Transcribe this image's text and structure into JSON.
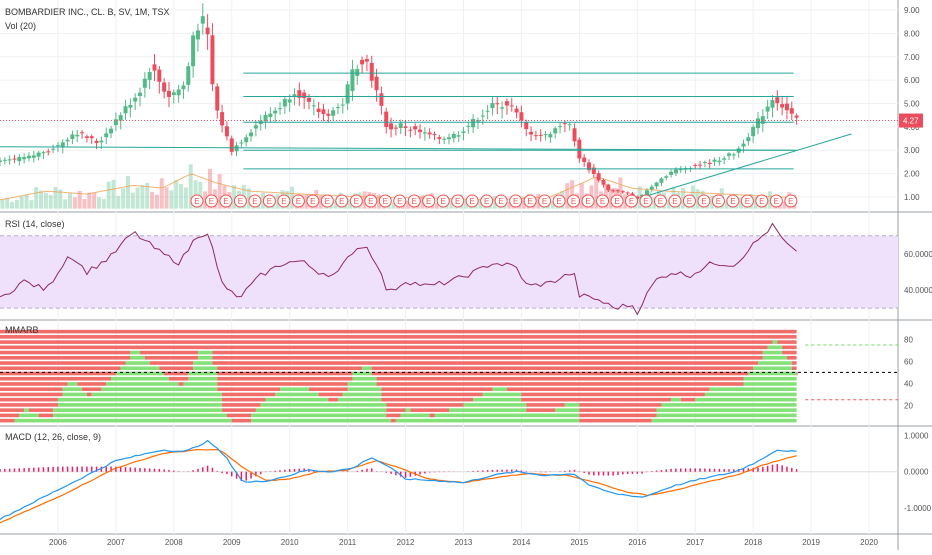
{
  "header": {
    "symbol_line": "BOMBARDIER INC., CL. B, SV, 1M, TSX",
    "volume_label": "Vol (20)"
  },
  "colors": {
    "up": "#53b987",
    "down": "#eb4d5c",
    "trendline": "#26a69a",
    "rsi_line": "#8e2a5f",
    "rsi_band": "#efe0fb",
    "macd_line": "#2196f3",
    "signal_line": "#ff6d00",
    "hist": "#e91e63",
    "mmar_green": "#6fdc5f",
    "mmar_red": "#ef5350",
    "price_tag": "#eb4d5c",
    "earnings": "#ef5350"
  },
  "price_tag": "4.27",
  "earnings_marker": "E",
  "chart_data": [
    {
      "pane": "price",
      "type": "candlestick",
      "title": "BOMBARDIER INC., CL. B, SV, 1M, TSX",
      "x_ticks": [
        "2006",
        "2007",
        "2008",
        "2009",
        "2010",
        "2011",
        "2012",
        "2013",
        "2014",
        "2015",
        "2016",
        "2017",
        "2018",
        "2019",
        "2020"
      ],
      "y_ticks": [
        "9.00",
        "8.00",
        "7.00",
        "6.00",
        "5.00",
        "4.00",
        "3.00",
        "2.00",
        "1.00"
      ],
      "ylim": [
        0.4,
        9.3
      ],
      "last_price": 4.27,
      "close_anchors": [
        [
          2005.0,
          2.5
        ],
        [
          2005.5,
          2.7
        ],
        [
          2006.0,
          3.2
        ],
        [
          2006.3,
          3.8
        ],
        [
          2006.7,
          3.3
        ],
        [
          2007.0,
          4.3
        ],
        [
          2007.4,
          5.5
        ],
        [
          2007.6,
          6.6
        ],
        [
          2007.9,
          5.3
        ],
        [
          2008.2,
          5.8
        ],
        [
          2008.35,
          8.2
        ],
        [
          2008.55,
          8.6
        ],
        [
          2008.7,
          5.0
        ],
        [
          2008.85,
          4.0
        ],
        [
          2009.0,
          3.0
        ],
        [
          2009.2,
          3.5
        ],
        [
          2009.5,
          4.3
        ],
        [
          2009.8,
          4.8
        ],
        [
          2010.1,
          5.6
        ],
        [
          2010.3,
          5.0
        ],
        [
          2010.6,
          4.5
        ],
        [
          2010.9,
          4.9
        ],
        [
          2011.1,
          6.5
        ],
        [
          2011.3,
          7.0
        ],
        [
          2011.5,
          5.5
        ],
        [
          2011.7,
          3.8
        ],
        [
          2011.9,
          4.1
        ],
        [
          2012.2,
          3.8
        ],
        [
          2012.6,
          3.5
        ],
        [
          2012.9,
          3.7
        ],
        [
          2013.2,
          4.3
        ],
        [
          2013.5,
          4.9
        ],
        [
          2013.8,
          5.0
        ],
        [
          2014.1,
          3.8
        ],
        [
          2014.4,
          3.6
        ],
        [
          2014.8,
          4.3
        ],
        [
          2015.0,
          2.7
        ],
        [
          2015.2,
          2.1
        ],
        [
          2015.5,
          1.3
        ],
        [
          2015.8,
          1.2
        ],
        [
          2016.0,
          0.9
        ],
        [
          2016.3,
          1.6
        ],
        [
          2016.6,
          2.1
        ],
        [
          2016.9,
          2.3
        ],
        [
          2017.3,
          2.5
        ],
        [
          2017.7,
          2.9
        ],
        [
          2017.9,
          3.6
        ],
        [
          2018.1,
          4.3
        ],
        [
          2018.35,
          5.3
        ],
        [
          2018.5,
          4.9
        ],
        [
          2018.75,
          4.27
        ]
      ],
      "volume_anchors": [
        [
          2005.0,
          0.15
        ],
        [
          2005.8,
          0.3
        ],
        [
          2006.5,
          0.25
        ],
        [
          2007.3,
          0.4
        ],
        [
          2007.8,
          0.35
        ],
        [
          2008.3,
          0.6
        ],
        [
          2008.7,
          0.45
        ],
        [
          2009.3,
          0.3
        ],
        [
          2010.2,
          0.25
        ],
        [
          2011.3,
          0.2
        ],
        [
          2012.5,
          0.18
        ],
        [
          2013.5,
          0.15
        ],
        [
          2014.5,
          0.2
        ],
        [
          2015.3,
          0.55
        ],
        [
          2015.9,
          0.35
        ],
        [
          2016.5,
          0.3
        ],
        [
          2017.5,
          0.25
        ],
        [
          2018.5,
          0.2
        ]
      ],
      "horizontal_lines": [
        6.3,
        5.3,
        4.2,
        3.0,
        2.2
      ],
      "support_line": [
        3.15,
        3.0
      ],
      "trend_line": [
        [
          2016.1,
          1.0
        ],
        [
          2019.7,
          3.7
        ]
      ],
      "earnings_start": 2008.4,
      "earnings_end": 2018.75,
      "earnings_step": 0.25
    },
    {
      "pane": "rsi",
      "type": "line",
      "title": "RSI (14, close)",
      "y_ticks": [
        "60.0000",
        "40.0000"
      ],
      "ylim": [
        24,
        82
      ],
      "band": [
        30,
        70
      ],
      "anchors": [
        [
          2005.0,
          35
        ],
        [
          2005.4,
          45
        ],
        [
          2005.8,
          40
        ],
        [
          2006.2,
          60
        ],
        [
          2006.5,
          50
        ],
        [
          2006.9,
          58
        ],
        [
          2007.3,
          72
        ],
        [
          2007.8,
          60
        ],
        [
          2008.1,
          55
        ],
        [
          2008.4,
          70
        ],
        [
          2008.6,
          72
        ],
        [
          2008.8,
          45
        ],
        [
          2009.1,
          35
        ],
        [
          2009.5,
          48
        ],
        [
          2009.9,
          55
        ],
        [
          2010.2,
          56
        ],
        [
          2010.5,
          50
        ],
        [
          2010.8,
          48
        ],
        [
          2011.1,
          62
        ],
        [
          2011.3,
          65
        ],
        [
          2011.5,
          55
        ],
        [
          2011.7,
          38
        ],
        [
          2012.0,
          45
        ],
        [
          2012.4,
          42
        ],
        [
          2012.8,
          45
        ],
        [
          2013.2,
          50
        ],
        [
          2013.5,
          55
        ],
        [
          2013.9,
          53
        ],
        [
          2014.1,
          42
        ],
        [
          2014.5,
          44
        ],
        [
          2014.9,
          50
        ],
        [
          2015.0,
          37
        ],
        [
          2015.3,
          35
        ],
        [
          2015.6,
          30
        ],
        [
          2015.9,
          32
        ],
        [
          2016.0,
          28
        ],
        [
          2016.3,
          45
        ],
        [
          2016.6,
          50
        ],
        [
          2016.9,
          48
        ],
        [
          2017.3,
          55
        ],
        [
          2017.7,
          54
        ],
        [
          2017.9,
          62
        ],
        [
          2018.1,
          68
        ],
        [
          2018.35,
          76
        ],
        [
          2018.5,
          68
        ],
        [
          2018.75,
          60
        ]
      ]
    },
    {
      "pane": "mmar",
      "type": "ribbon",
      "title": "MMARB",
      "y_ticks": [
        "80",
        "60",
        "40",
        "20"
      ],
      "ylim": [
        2,
        96
      ],
      "guides": [
        75,
        50,
        25
      ],
      "ribbon_count": 18,
      "ribbon_extent": [
        2005.0,
        2018.75
      ]
    },
    {
      "pane": "macd",
      "type": "line",
      "title": "MACD (12, 26, close, 9)",
      "y_ticks": [
        "1.0000",
        "0.0000",
        "-1.0000"
      ],
      "ylim": [
        -1.6,
        1.2
      ],
      "macd_anchors": [
        [
          2005.0,
          -1.3
        ],
        [
          2006.0,
          -0.5
        ],
        [
          2007.0,
          0.3
        ],
        [
          2007.8,
          0.6
        ],
        [
          2008.2,
          0.55
        ],
        [
          2008.6,
          0.85
        ],
        [
          2008.9,
          0.4
        ],
        [
          2009.2,
          -0.3
        ],
        [
          2009.6,
          -0.25
        ],
        [
          2010.0,
          -0.1
        ],
        [
          2010.3,
          0.05
        ],
        [
          2010.7,
          0.0
        ],
        [
          2011.1,
          0.1
        ],
        [
          2011.4,
          0.4
        ],
        [
          2011.7,
          0.15
        ],
        [
          2012.0,
          -0.2
        ],
        [
          2012.6,
          -0.25
        ],
        [
          2013.0,
          -0.3
        ],
        [
          2013.5,
          -0.1
        ],
        [
          2013.9,
          0.0
        ],
        [
          2014.4,
          -0.1
        ],
        [
          2014.9,
          -0.05
        ],
        [
          2015.2,
          -0.4
        ],
        [
          2015.6,
          -0.6
        ],
        [
          2016.1,
          -0.7
        ],
        [
          2016.6,
          -0.4
        ],
        [
          2017.1,
          -0.2
        ],
        [
          2017.7,
          0.0
        ],
        [
          2018.1,
          0.3
        ],
        [
          2018.4,
          0.6
        ],
        [
          2018.75,
          0.55
        ]
      ],
      "signal_anchors": [
        [
          2005.0,
          -1.4
        ],
        [
          2006.0,
          -0.7
        ],
        [
          2007.0,
          0.1
        ],
        [
          2007.8,
          0.5
        ],
        [
          2008.4,
          0.6
        ],
        [
          2008.8,
          0.6
        ],
        [
          2009.2,
          0.1
        ],
        [
          2009.6,
          -0.25
        ],
        [
          2010.0,
          -0.2
        ],
        [
          2010.5,
          0.0
        ],
        [
          2011.0,
          0.05
        ],
        [
          2011.5,
          0.3
        ],
        [
          2011.9,
          0.1
        ],
        [
          2012.4,
          -0.2
        ],
        [
          2013.0,
          -0.3
        ],
        [
          2013.6,
          -0.15
        ],
        [
          2014.1,
          -0.05
        ],
        [
          2014.8,
          -0.1
        ],
        [
          2015.3,
          -0.3
        ],
        [
          2015.8,
          -0.55
        ],
        [
          2016.2,
          -0.65
        ],
        [
          2016.8,
          -0.45
        ],
        [
          2017.3,
          -0.25
        ],
        [
          2017.8,
          -0.05
        ],
        [
          2018.2,
          0.2
        ],
        [
          2018.75,
          0.45
        ]
      ]
    }
  ]
}
